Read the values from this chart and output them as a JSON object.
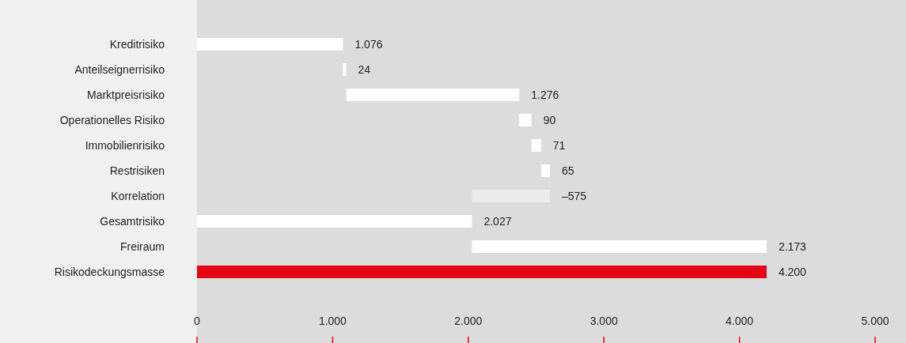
{
  "chart_data": {
    "type": "bar",
    "orientation": "horizontal",
    "categories": [
      "Kreditrisiko",
      "Anteilseignerrisiko",
      "Marktpreisrisiko",
      "Operationelles Risiko",
      "Immobilienrisiko",
      "Restrisiken",
      "Korrelation",
      "Gesamtrisiko",
      "Freiraum",
      "Risikodeckungsmasse"
    ],
    "values": [
      1076,
      24,
      1276,
      90,
      71,
      65,
      -575,
      2027,
      2173,
      4200
    ],
    "base": [
      0,
      1076,
      1100,
      2376,
      2466,
      2537,
      2602,
      0,
      2027,
      0
    ],
    "colors": [
      "#ffffff",
      "#ffffff",
      "#ffffff",
      "#ffffff",
      "#ffffff",
      "#ffffff",
      "#ebebeb",
      "#ffffff",
      "#ffffff",
      "#e30613"
    ],
    "value_labels": [
      "1.076",
      "24",
      "1.276",
      "90",
      "71",
      "65",
      "–575",
      "2.027",
      "2.173",
      "4.200"
    ],
    "xlim": [
      0,
      5000
    ],
    "xticks": [
      0,
      {
        "value": 1000,
        "label": "1.000"
      },
      {
        "value": 2000,
        "label": "2.000"
      },
      {
        "value": 3000,
        "label": "3.000"
      },
      {
        "value": 4000,
        "label": "4.000"
      },
      {
        "value": 5000,
        "label": "5.000"
      }
    ]
  }
}
